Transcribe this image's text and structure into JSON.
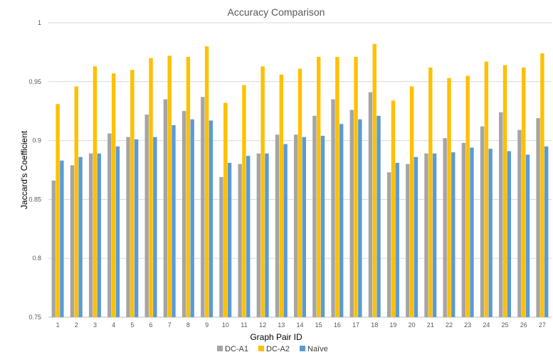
{
  "chart_data": {
    "type": "bar",
    "title": "Accuracy Comparison",
    "xlabel": "Graph Pair ID",
    "ylabel": "Jaccard's Coefficient",
    "ylim": [
      0.75,
      1
    ],
    "yticks": [
      "0.75",
      "0.8",
      "0.85",
      "0.9",
      "0.95",
      "1"
    ],
    "grid": true,
    "legend_position": "bottom",
    "categories": [
      "1",
      "2",
      "3",
      "4",
      "5",
      "6",
      "7",
      "8",
      "9",
      "10",
      "11",
      "12",
      "13",
      "14",
      "15",
      "16",
      "17",
      "18",
      "19",
      "20",
      "21",
      "22",
      "23",
      "24",
      "25",
      "26",
      "27"
    ],
    "series": [
      {
        "name": "DC-A1",
        "color": "#a5a5a5",
        "values": [
          0.866,
          0.879,
          0.889,
          0.906,
          0.903,
          0.922,
          0.935,
          0.925,
          0.937,
          0.869,
          0.88,
          0.889,
          0.905,
          0.905,
          0.921,
          0.935,
          0.926,
          0.941,
          0.873,
          0.88,
          0.889,
          0.902,
          0.898,
          0.912,
          0.924,
          0.909,
          0.919
        ]
      },
      {
        "name": "DC-A2",
        "color": "#ffc000",
        "values": [
          0.931,
          0.946,
          0.963,
          0.957,
          0.96,
          0.97,
          0.972,
          0.971,
          0.98,
          0.932,
          0.947,
          0.963,
          0.956,
          0.961,
          0.971,
          0.971,
          0.971,
          0.982,
          0.934,
          0.946,
          0.962,
          0.953,
          0.955,
          0.967,
          0.964,
          0.962,
          0.974
        ]
      },
      {
        "name": "Naïve",
        "color": "#5b9bd5",
        "values": [
          0.883,
          0.886,
          0.889,
          0.895,
          0.901,
          0.903,
          0.913,
          0.918,
          0.917,
          0.881,
          0.887,
          0.889,
          0.897,
          0.903,
          0.904,
          0.914,
          0.918,
          0.921,
          0.881,
          0.886,
          0.889,
          0.89,
          0.894,
          0.893,
          0.891,
          0.888,
          0.895
        ]
      }
    ]
  }
}
